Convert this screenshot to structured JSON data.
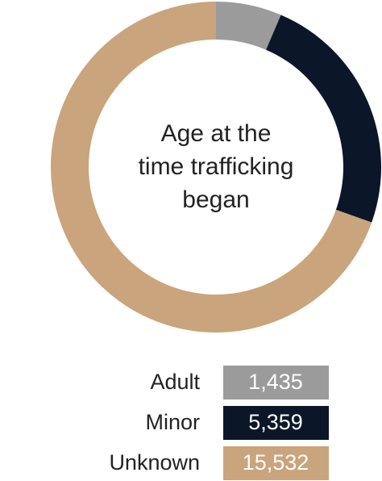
{
  "chart_data": {
    "type": "donut",
    "title": "Age at the time trafficking began",
    "categories": [
      "Adult",
      "Minor",
      "Unknown"
    ],
    "values": [
      1435,
      5359,
      15532
    ],
    "value_labels": [
      "1,435",
      "5,359",
      "15,532"
    ],
    "colors": [
      "#9b9b9b",
      "#0b1628",
      "#c9a47c"
    ]
  }
}
